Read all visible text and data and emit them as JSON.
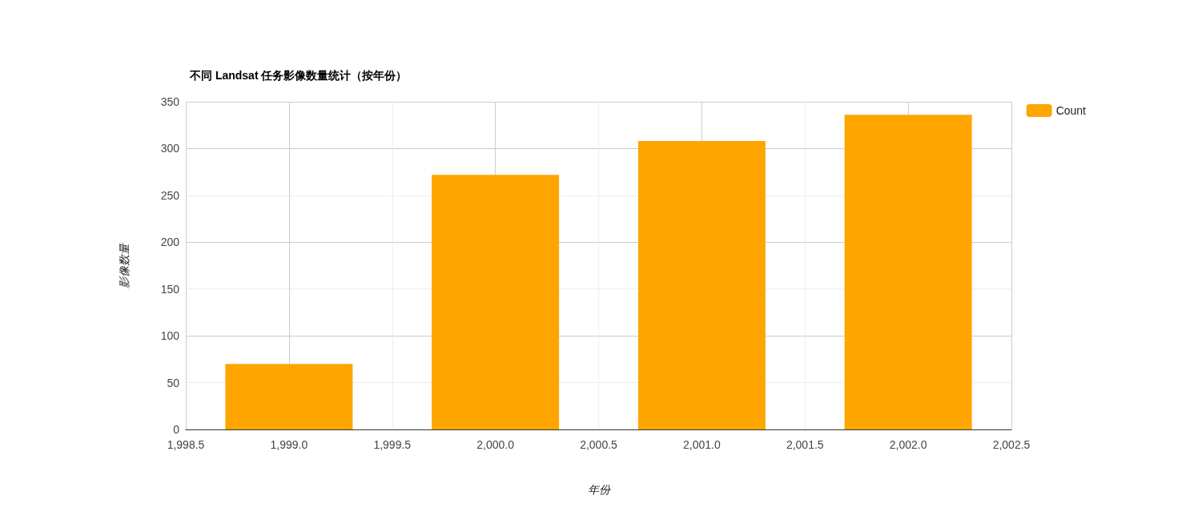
{
  "chart_data": {
    "type": "bar",
    "title": "不同 Landsat 任务影像数量统计（按年份）",
    "xlabel": "年份",
    "ylabel": "影像数量",
    "x": [
      1999,
      2000,
      2001,
      2002
    ],
    "series": [
      {
        "name": "Count",
        "color": "#ffa500",
        "values": [
          70,
          272,
          308,
          336
        ]
      }
    ],
    "xlim": [
      1998.5,
      2002.5
    ],
    "xticks": [
      {
        "value": 1998.5,
        "label": "1,998.5"
      },
      {
        "value": 1999,
        "label": "1,999.0"
      },
      {
        "value": 1999.5,
        "label": "1,999.5"
      },
      {
        "value": 2000,
        "label": "2,000.0"
      },
      {
        "value": 2000.5,
        "label": "2,000.5"
      },
      {
        "value": 2001,
        "label": "2,001.0"
      },
      {
        "value": 2001.5,
        "label": "2,001.5"
      },
      {
        "value": 2002,
        "label": "2,002.0"
      },
      {
        "value": 2002.5,
        "label": "2,002.5"
      }
    ],
    "ylim": [
      0,
      350
    ],
    "yticks": [
      0,
      50,
      100,
      150,
      200,
      250,
      300,
      350
    ],
    "grid": true,
    "legend": "top right"
  }
}
